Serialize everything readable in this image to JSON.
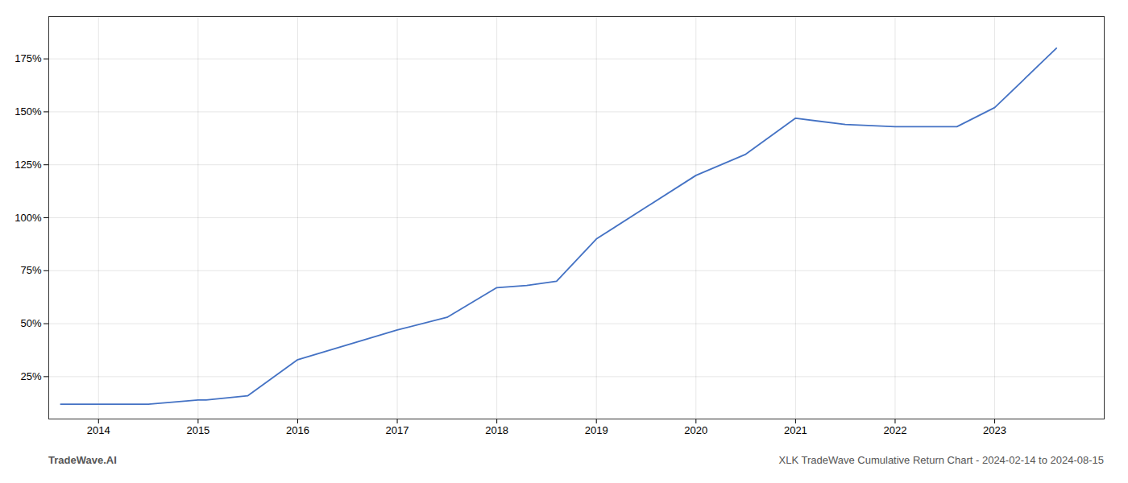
{
  "chart_data": {
    "type": "line",
    "title": "XLK TradeWave Cumulative Return Chart - 2024-02-14 to 2024-08-15",
    "annotations": [
      "TradeWave.AI"
    ],
    "x": [
      2013.62,
      2014.0,
      2014.08,
      2014.5,
      2015.0,
      2015.08,
      2015.5,
      2016.0,
      2016.5,
      2017.0,
      2017.5,
      2018.0,
      2018.3,
      2018.6,
      2019.0,
      2019.5,
      2020.0,
      2020.5,
      2021.0,
      2021.5,
      2022.0,
      2022.5,
      2022.62,
      2023.0,
      2023.62
    ],
    "values": [
      12,
      12,
      12,
      12,
      14,
      14,
      16,
      33,
      40,
      47,
      53,
      67,
      68,
      70,
      90,
      105,
      120,
      130,
      147,
      144,
      143,
      143,
      143,
      152,
      180
    ],
    "color": "#4472c4",
    "xlim": [
      2013.5,
      2024.1
    ],
    "xticks": [
      2014,
      2015,
      2016,
      2017,
      2018,
      2019,
      2020,
      2021,
      2022,
      2023
    ],
    "ylim": [
      5,
      195
    ],
    "yticks": [
      {
        "value": 25,
        "label": "25%"
      },
      {
        "value": 50,
        "label": "50%"
      },
      {
        "value": 75,
        "label": "75%"
      },
      {
        "value": 100,
        "label": "100%"
      },
      {
        "value": 125,
        "label": "125%"
      },
      {
        "value": 150,
        "label": "150%"
      },
      {
        "value": 175,
        "label": "175%"
      }
    ],
    "grid": true
  }
}
